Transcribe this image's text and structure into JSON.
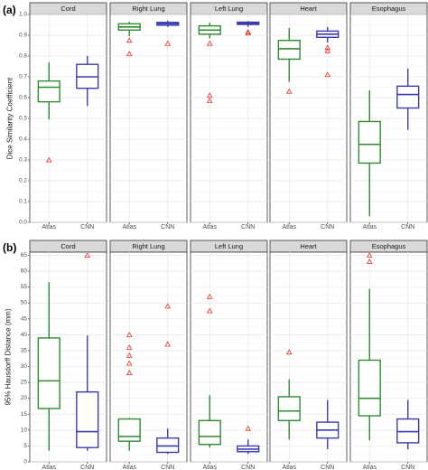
{
  "colors": {
    "Atlas": "#2e8b2e",
    "CNN": "#3b3bb0",
    "outlier": "#e8302a",
    "strip": "#d9d9d9"
  },
  "chart_data": [
    {
      "type": "box",
      "tag": "(a)",
      "ylabel": "Dice Similarity Coefficient",
      "ylim": [
        0,
        1.0
      ],
      "yticks": [
        0.0,
        0.1,
        0.2,
        0.3,
        0.4,
        0.5,
        0.6,
        0.7,
        0.8,
        0.9,
        1.0
      ],
      "ytick_labels": [
        "0.0",
        "0.1",
        "0.2",
        "0.3",
        "0.4",
        "0.5",
        "0.6",
        "0.7",
        "0.8",
        "0.9",
        "1.0"
      ],
      "categories": [
        "Atlas",
        "CNN"
      ],
      "grid": true,
      "panels": [
        {
          "name": "Cord",
          "boxes": [
            {
              "group": "Atlas",
              "min": 0.495,
              "q1": 0.58,
              "median": 0.65,
              "q3": 0.68,
              "max": 0.77,
              "outliers": [
                0.3
              ]
            },
            {
              "group": "CNN",
              "min": 0.56,
              "q1": 0.645,
              "median": 0.7,
              "q3": 0.76,
              "max": 0.8,
              "outliers": []
            }
          ]
        },
        {
          "name": "Right Lung",
          "boxes": [
            {
              "group": "Atlas",
              "min": 0.895,
              "q1": 0.925,
              "median": 0.94,
              "q3": 0.955,
              "max": 0.965,
              "outliers": [
                0.875,
                0.81
              ]
            },
            {
              "group": "CNN",
              "min": 0.94,
              "q1": 0.948,
              "median": 0.955,
              "q3": 0.962,
              "max": 0.97,
              "outliers": [
                0.86
              ]
            }
          ]
        },
        {
          "name": "Left Lung",
          "boxes": [
            {
              "group": "Atlas",
              "min": 0.885,
              "q1": 0.905,
              "median": 0.925,
              "q3": 0.945,
              "max": 0.96,
              "outliers": [
                0.86,
                0.61,
                0.585
              ]
            },
            {
              "group": "CNN",
              "min": 0.94,
              "q1": 0.952,
              "median": 0.958,
              "q3": 0.963,
              "max": 0.968,
              "outliers": [
                0.915,
                0.91
              ]
            }
          ]
        },
        {
          "name": "Heart",
          "boxes": [
            {
              "group": "Atlas",
              "min": 0.675,
              "q1": 0.785,
              "median": 0.835,
              "q3": 0.875,
              "max": 0.935,
              "outliers": [
                0.63
              ]
            },
            {
              "group": "CNN",
              "min": 0.865,
              "q1": 0.89,
              "median": 0.905,
              "q3": 0.92,
              "max": 0.94,
              "outliers": [
                0.84,
                0.825,
                0.71
              ]
            }
          ]
        },
        {
          "name": "Esophagus",
          "boxes": [
            {
              "group": "Atlas",
              "min": 0.03,
              "q1": 0.285,
              "median": 0.375,
              "q3": 0.485,
              "max": 0.635,
              "outliers": []
            },
            {
              "group": "CNN",
              "min": 0.445,
              "q1": 0.55,
              "median": 0.615,
              "q3": 0.655,
              "max": 0.74,
              "outliers": []
            }
          ]
        }
      ]
    },
    {
      "type": "box",
      "tag": "(b)",
      "ylabel": "95% Hausdorff Distance (mm)",
      "ylim": [
        0,
        66
      ],
      "yticks": [
        0,
        5,
        10,
        15,
        20,
        25,
        30,
        35,
        40,
        45,
        50,
        55,
        60,
        65
      ],
      "ytick_labels": [
        "0",
        "5",
        "10",
        "15",
        "20",
        "25",
        "30",
        "35",
        "40",
        "45",
        "50",
        "55",
        "60",
        "65"
      ],
      "categories": [
        "Atlas",
        "CNN"
      ],
      "grid": true,
      "panels": [
        {
          "name": "Cord",
          "boxes": [
            {
              "group": "Atlas",
              "min": 3.5,
              "q1": 16.8,
              "median": 25.5,
              "q3": 39.0,
              "max": 56.5,
              "outliers": []
            },
            {
              "group": "CNN",
              "min": 3.5,
              "q1": 4.5,
              "median": 9.5,
              "q3": 22.0,
              "max": 39.8,
              "outliers": [
                65.0
              ]
            }
          ]
        },
        {
          "name": "Right Lung",
          "boxes": [
            {
              "group": "Atlas",
              "min": 3.5,
              "q1": 6.5,
              "median": 8.0,
              "q3": 13.5,
              "max": 13.8,
              "outliers": [
                40.0,
                36.0,
                33.5,
                31.0,
                28.0
              ]
            },
            {
              "group": "CNN",
              "min": 2.5,
              "q1": 3.0,
              "median": 5.0,
              "q3": 7.5,
              "max": 10.5,
              "outliers": [
                49.0,
                37.0
              ]
            }
          ]
        },
        {
          "name": "Left Lung",
          "boxes": [
            {
              "group": "Atlas",
              "min": 4.5,
              "q1": 5.5,
              "median": 8.0,
              "q3": 13.0,
              "max": 21.0,
              "outliers": [
                52.0,
                47.5
              ]
            },
            {
              "group": "CNN",
              "min": 2.5,
              "q1": 3.2,
              "median": 4.0,
              "q3": 5.0,
              "max": 7.0,
              "outliers": [
                10.5
              ]
            }
          ]
        },
        {
          "name": "Heart",
          "boxes": [
            {
              "group": "Atlas",
              "min": 7.0,
              "q1": 13.0,
              "median": 16.0,
              "q3": 20.5,
              "max": 26.0,
              "outliers": [
                34.5
              ]
            },
            {
              "group": "CNN",
              "min": 4.0,
              "q1": 7.5,
              "median": 10.0,
              "q3": 12.5,
              "max": 19.5,
              "outliers": []
            }
          ]
        },
        {
          "name": "Esophagus",
          "boxes": [
            {
              "group": "Atlas",
              "min": 6.8,
              "q1": 14.5,
              "median": 20.0,
              "q3": 32.0,
              "max": 54.5,
              "outliers": [
                65.0,
                63.0
              ]
            },
            {
              "group": "CNN",
              "min": 4.0,
              "q1": 6.0,
              "median": 9.5,
              "q3": 13.5,
              "max": 19.5,
              "outliers": []
            }
          ]
        }
      ]
    }
  ]
}
